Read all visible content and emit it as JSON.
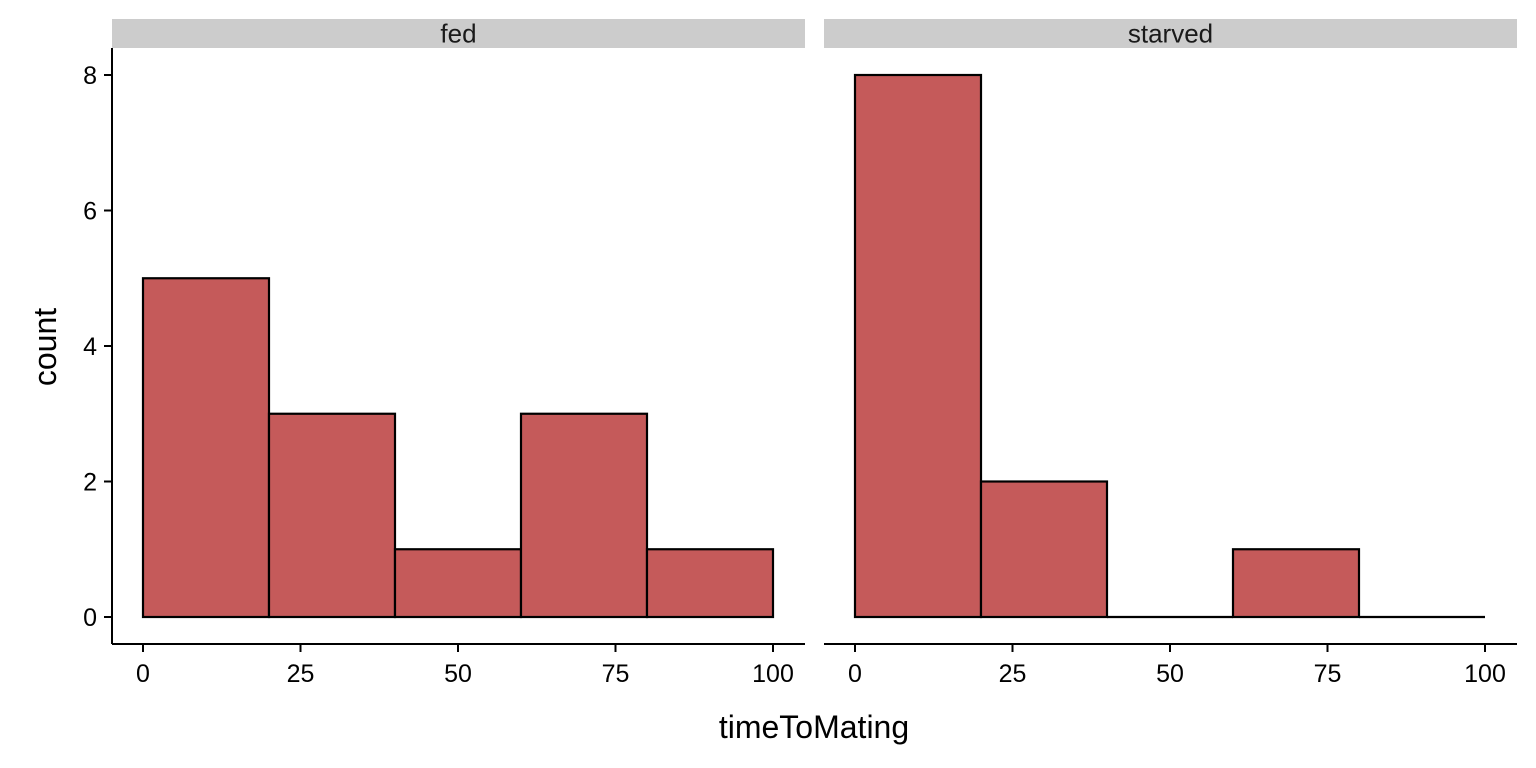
{
  "chart_data": {
    "type": "bar",
    "subtype": "histogram-facets",
    "xlabel": "timeToMating",
    "ylabel": "count",
    "xlim": [
      0,
      100
    ],
    "ylim": [
      0,
      8
    ],
    "x_ticks": [
      0,
      25,
      50,
      75,
      100
    ],
    "y_ticks": [
      0,
      2,
      4,
      6,
      8
    ],
    "bin_edges": [
      0,
      20,
      40,
      60,
      80,
      100
    ],
    "fill_color": "#c55a5a",
    "edge_color": "#000000",
    "strip_color": "#cccccc",
    "grid": false,
    "legend": "none",
    "panels": [
      {
        "label": "fed",
        "counts": [
          5,
          3,
          1,
          3,
          1
        ]
      },
      {
        "label": "starved",
        "counts": [
          8,
          2,
          0,
          1,
          0
        ]
      }
    ]
  }
}
